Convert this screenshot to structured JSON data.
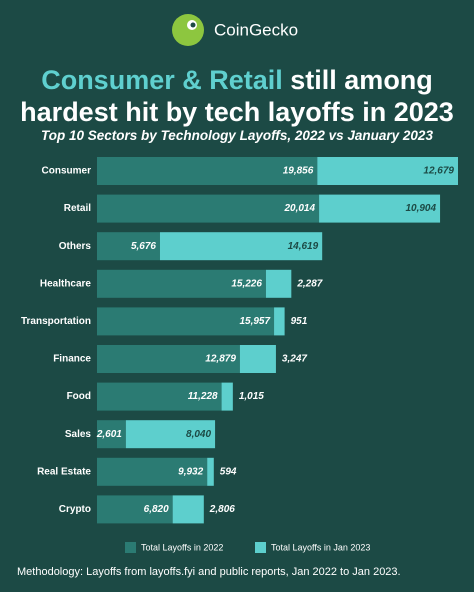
{
  "brand": "CoinGecko",
  "chart_data": {
    "type": "bar",
    "orientation": "horizontal",
    "stacked": true,
    "title_highlight": "Consumer & Retail",
    "title": "still among hardest hit by tech layoffs in 2023",
    "subtitle": "Top 10 Sectors by Technology Layoffs, 2022 vs January 2023",
    "categories": [
      "Consumer",
      "Retail",
      "Others",
      "Healthcare",
      "Transportation",
      "Finance",
      "Food",
      "Sales",
      "Real Estate",
      "Crypto"
    ],
    "series": [
      {
        "name": "Total Layoffs in 2022",
        "color": "#2b7b73",
        "values": [
          19856,
          20014,
          5676,
          15226,
          15957,
          12879,
          11228,
          2601,
          9932,
          6820
        ],
        "value_labels": [
          "19,856",
          "20,014",
          "5,676",
          "15,226",
          "15,957",
          "12,879",
          "11,228",
          "2,601",
          "9,932",
          "6,820"
        ]
      },
      {
        "name": "Total Layoffs in Jan 2023",
        "color": "#5dcfcd",
        "values": [
          12679,
          10904,
          14619,
          2287,
          951,
          3247,
          1015,
          8040,
          594,
          2806
        ],
        "value_labels": [
          "12,679",
          "10,904",
          "14,619",
          "2,287",
          "951",
          "3,247",
          "1,015",
          "8,040",
          "594",
          "2,806"
        ]
      }
    ],
    "note": "Methodology: Layoffs from layoffs.fyi and public reports, Jan 2022 to Jan 2023."
  }
}
